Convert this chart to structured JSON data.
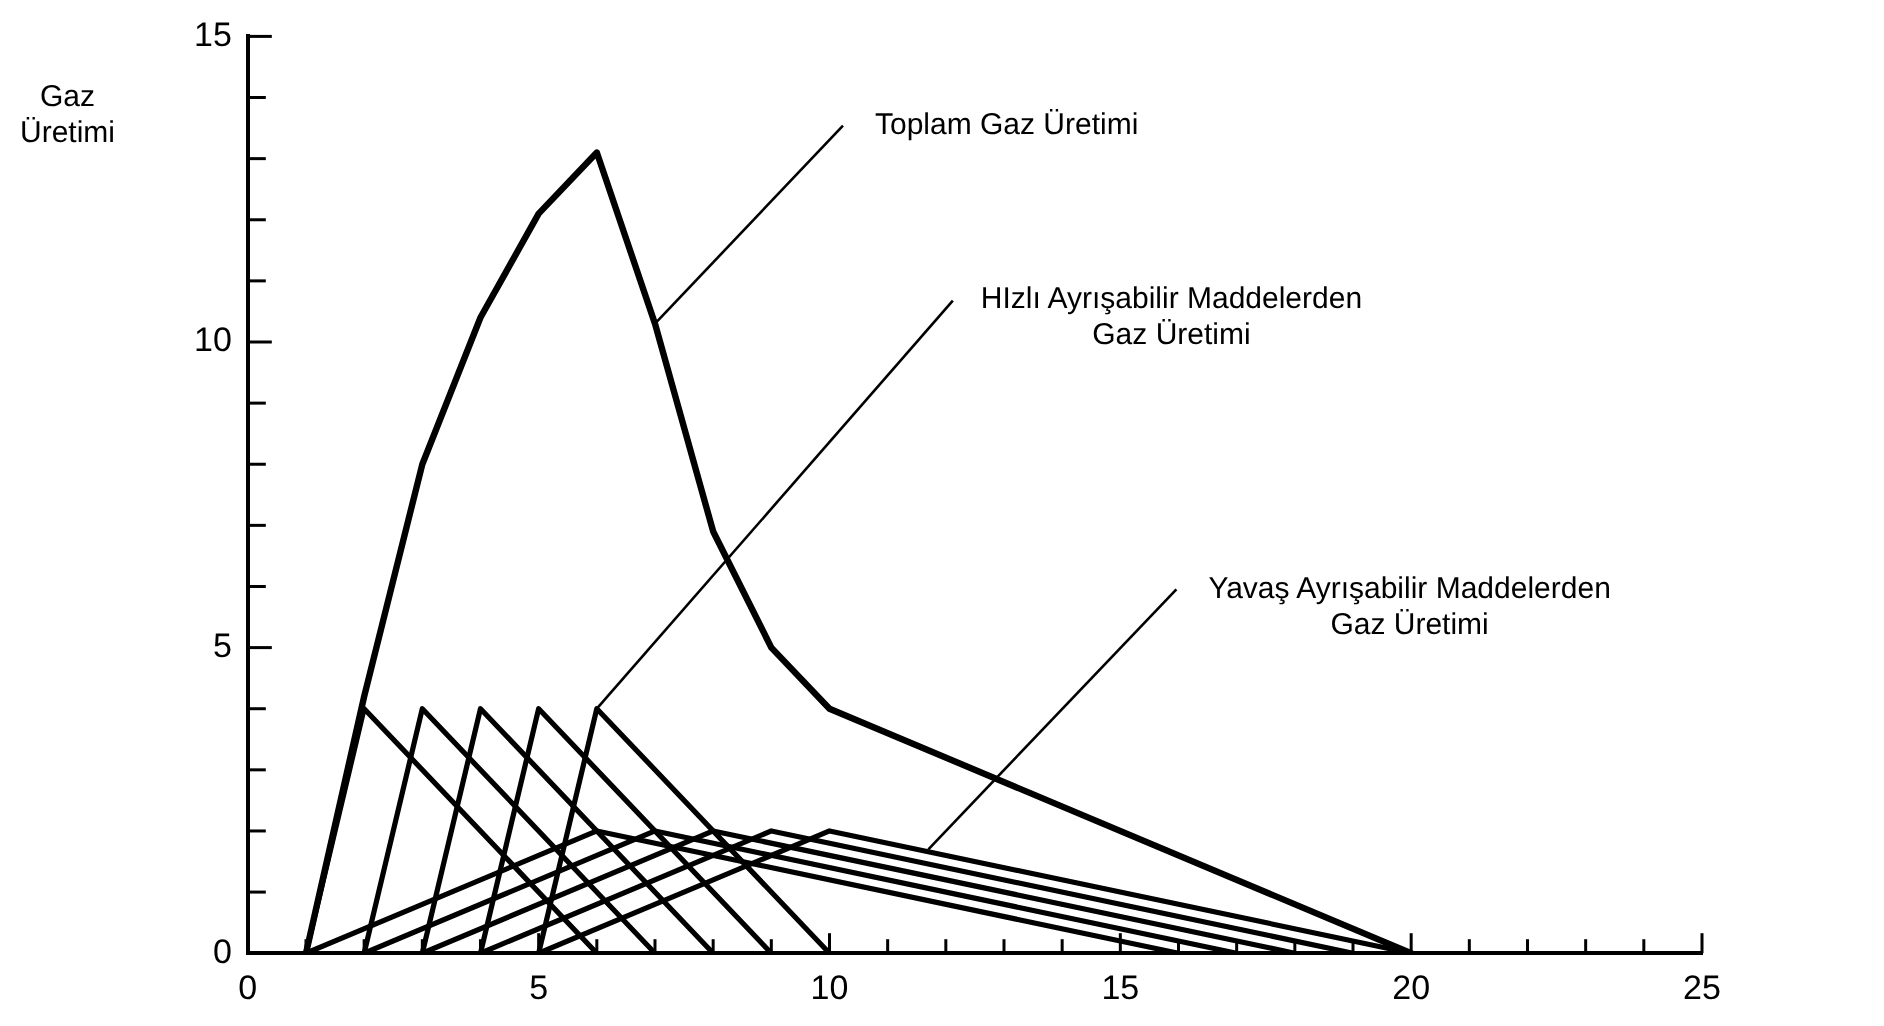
{
  "chart_data": {
    "type": "line",
    "ylabel": "Gaz\nÜretimi",
    "xlim": [
      0,
      25
    ],
    "ylim": [
      0,
      15
    ],
    "xticks": [
      0,
      {
        "value": 1,
        "label": null
      },
      {
        "value": 2,
        "label": null
      },
      {
        "value": 3,
        "label": null
      },
      {
        "value": 4,
        "label": null
      },
      5,
      {
        "value": 6,
        "label": null
      },
      {
        "value": 7,
        "label": null
      },
      {
        "value": 8,
        "label": null
      },
      {
        "value": 9,
        "label": null
      },
      10,
      {
        "value": 11,
        "label": null
      },
      {
        "value": 12,
        "label": null
      },
      {
        "value": 13,
        "label": null
      },
      {
        "value": 14,
        "label": null
      },
      15,
      {
        "value": 16,
        "label": null
      },
      {
        "value": 17,
        "label": null
      },
      {
        "value": 18,
        "label": null
      },
      {
        "value": 19,
        "label": null
      },
      20,
      {
        "value": 21,
        "label": null
      },
      {
        "value": 22,
        "label": null
      },
      {
        "value": 23,
        "label": null
      },
      {
        "value": 24,
        "label": null
      },
      25
    ],
    "yticks": [
      0,
      {
        "value": 1,
        "label": null
      },
      {
        "value": 2,
        "label": null
      },
      {
        "value": 3,
        "label": null
      },
      {
        "value": 4,
        "label": null
      },
      5,
      {
        "value": 6,
        "label": null
      },
      {
        "value": 7,
        "label": null
      },
      {
        "value": 8,
        "label": null
      },
      {
        "value": 9,
        "label": null
      },
      10,
      {
        "value": 11,
        "label": null
      },
      {
        "value": 12,
        "label": null
      },
      {
        "value": 13,
        "label": null
      },
      {
        "value": 14,
        "label": null
      },
      15
    ],
    "grid": false,
    "legend": false,
    "marker": "none",
    "line_style": "solid",
    "series": [
      {
        "color": "#000000",
        "x": [
          1,
          2,
          3,
          4,
          5,
          6,
          7,
          8,
          9,
          10,
          20
        ],
        "values": [
          0,
          4.2,
          8,
          10.4,
          12.1,
          13.1,
          10.3,
          6.9,
          5,
          4,
          0
        ]
      },
      {
        "color": "#000000",
        "x": [
          1,
          2,
          6
        ],
        "values": [
          0,
          4,
          0
        ]
      },
      {
        "color": "#000000",
        "x": [
          2,
          3,
          7
        ],
        "values": [
          0,
          4,
          0
        ]
      },
      {
        "color": "#000000",
        "x": [
          3,
          4,
          8
        ],
        "values": [
          0,
          4,
          0
        ]
      },
      {
        "color": "#000000",
        "x": [
          4,
          5,
          9
        ],
        "values": [
          0,
          4,
          0
        ]
      },
      {
        "color": "#000000",
        "x": [
          5,
          6,
          10
        ],
        "values": [
          0,
          4,
          0
        ]
      },
      {
        "color": "#000000",
        "x": [
          1,
          6,
          16
        ],
        "values": [
          0,
          2,
          0
        ]
      },
      {
        "color": "#000000",
        "x": [
          2,
          7,
          17
        ],
        "values": [
          0,
          2,
          0
        ]
      },
      {
        "color": "#000000",
        "x": [
          3,
          8,
          18
        ],
        "values": [
          0,
          2,
          0
        ]
      },
      {
        "color": "#000000",
        "x": [
          4,
          9,
          19
        ],
        "values": [
          0,
          2,
          0
        ]
      },
      {
        "color": "#000000",
        "x": [
          5,
          10,
          20
        ],
        "values": [
          0,
          2,
          0
        ]
      }
    ],
    "annotations": [
      {
        "text": "Toplam Gaz Üretimi",
        "x": 7,
        "y": 10.3
      },
      {
        "text": "HIzlı Ayrışabilir Maddelerden\nGaz Üretimi",
        "x": 6,
        "y": 4
      },
      {
        "text": "Yavaş Ayrışabilir Maddelerden\nGaz Üretimi",
        "x": 11.7,
        "y": 1.7
      }
    ]
  }
}
